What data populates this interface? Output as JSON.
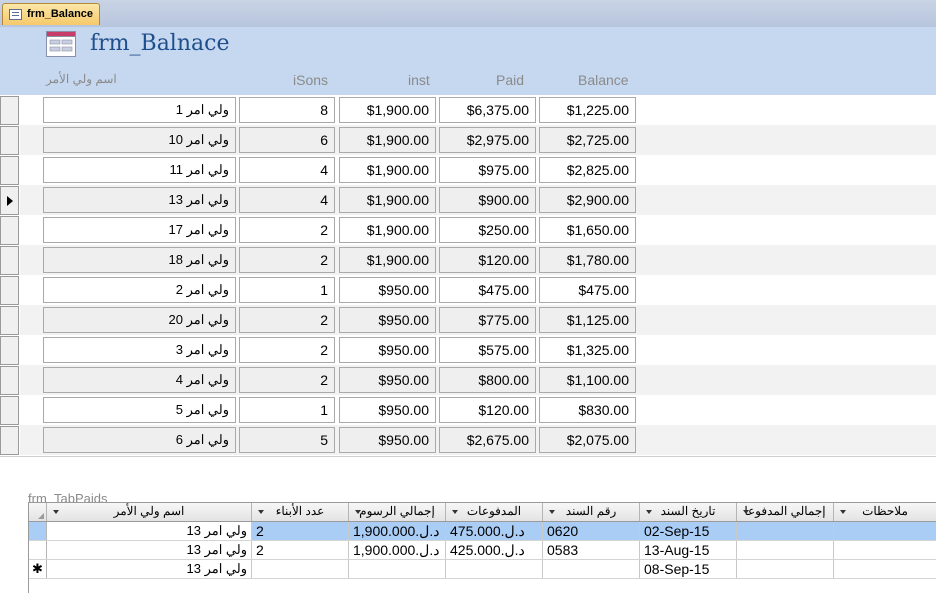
{
  "tab": {
    "label": "frm_Balance"
  },
  "form": {
    "title": "frm_Balnace",
    "headers": {
      "name": "اسم ولي الأمر",
      "sons": "iSons",
      "inst": "inst",
      "paid": "Paid",
      "balance": "Balance"
    }
  },
  "rows": [
    {
      "name": "ولي امر 1",
      "sons": "8",
      "inst": "$1,900.00",
      "paid": "$6,375.00",
      "balance": "$1,225.00"
    },
    {
      "name": "ولي امر 10",
      "sons": "6",
      "inst": "$1,900.00",
      "paid": "$2,975.00",
      "balance": "$2,725.00"
    },
    {
      "name": "ولي امر 11",
      "sons": "4",
      "inst": "$1,900.00",
      "paid": "$975.00",
      "balance": "$2,825.00"
    },
    {
      "name": "ولي امر 13",
      "sons": "4",
      "inst": "$1,900.00",
      "paid": "$900.00",
      "balance": "$2,900.00"
    },
    {
      "name": "ولي امر 17",
      "sons": "2",
      "inst": "$1,900.00",
      "paid": "$250.00",
      "balance": "$1,650.00"
    },
    {
      "name": "ولي امر 18",
      "sons": "2",
      "inst": "$1,900.00",
      "paid": "$120.00",
      "balance": "$1,780.00"
    },
    {
      "name": "ولي امر 2",
      "sons": "1",
      "inst": "$950.00",
      "paid": "$475.00",
      "balance": "$475.00"
    },
    {
      "name": "ولي امر 20",
      "sons": "2",
      "inst": "$950.00",
      "paid": "$775.00",
      "balance": "$1,125.00"
    },
    {
      "name": "ولي امر 3",
      "sons": "2",
      "inst": "$950.00",
      "paid": "$575.00",
      "balance": "$1,325.00"
    },
    {
      "name": "ولي امر 4",
      "sons": "2",
      "inst": "$950.00",
      "paid": "$800.00",
      "balance": "$1,100.00"
    },
    {
      "name": "ولي امر 5",
      "sons": "1",
      "inst": "$950.00",
      "paid": "$120.00",
      "balance": "$830.00"
    },
    {
      "name": "ولي امر 6",
      "sons": "5",
      "inst": "$950.00",
      "paid": "$2,675.00",
      "balance": "$2,075.00"
    }
  ],
  "current_record": 4,
  "subform": {
    "label": "frm_TabPaids",
    "columns": [
      "اسم ولي الأمر",
      "عدد الأبناء",
      "إجمالي الرسوم",
      "المدفوعات",
      "رقم السند",
      "تاريخ السند",
      "إجمالي المدفوعا",
      "ملاحظات"
    ],
    "rows": [
      {
        "name": "ولي امر 13",
        "sons": "2",
        "fees": "د.ل.1,900.000",
        "payments": "د.ل.475.000",
        "voucher": "0620",
        "date": "02-Sep-15",
        "total": "",
        "notes": "",
        "selected": true
      },
      {
        "name": "ولي امر 13",
        "sons": "2",
        "fees": "د.ل.1,900.000",
        "payments": "د.ل.425.000",
        "voucher": "0583",
        "date": "13-Aug-15",
        "total": "",
        "notes": ""
      },
      {
        "name": "ولي امر 13",
        "sons": "",
        "fees": "",
        "payments": "",
        "voucher": "",
        "date": "08-Sep-15",
        "total": "",
        "notes": "",
        "new_marker": "✱"
      }
    ]
  }
}
